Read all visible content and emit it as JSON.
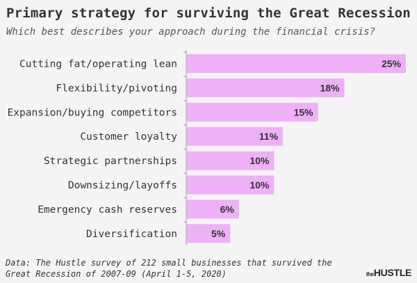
{
  "chart_data": {
    "type": "bar",
    "orientation": "horizontal",
    "title": "Primary strategy for surviving the Great Recession",
    "subtitle": "Which best describes your approach during the financial crisis?",
    "categories": [
      "Cutting fat/operating lean",
      "Flexibility/pivoting",
      "Expansion/buying competitors",
      "Customer loyalty",
      "Strategic partnerships",
      "Downsizing/layoffs",
      "Emergency cash reserves",
      "Diversification"
    ],
    "values": [
      25,
      18,
      15,
      11,
      10,
      10,
      6,
      5
    ],
    "data_labels": [
      "25%",
      "18%",
      "15%",
      "11%",
      "10%",
      "10%",
      "6%",
      "5%"
    ],
    "xlim": [
      0,
      25
    ],
    "grid": false,
    "bar_color": "#eeb1f7",
    "source": [
      "Data: The Hustle survey of 212 small businesses that survived the",
      "Great Recession of 2007-09 (April 1-5, 2020)"
    ],
    "logo": "the HUSTLE"
  }
}
